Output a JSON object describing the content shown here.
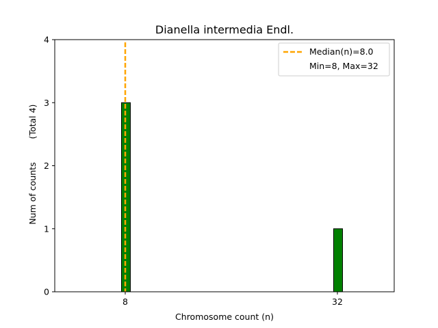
{
  "chart_data": {
    "type": "bar",
    "title": "Dianella intermedia Endl.",
    "xlabel": "Chromosome count (n)",
    "ylabel": "Num of counts",
    "ylabel_note": "(Total 4)",
    "x": [
      8,
      32
    ],
    "values": [
      3,
      1
    ],
    "xticks": [
      8,
      32
    ],
    "yticks": [
      0,
      1,
      2,
      3,
      4
    ],
    "ylim": [
      0,
      4
    ],
    "grid": false,
    "legend_position": "top-right",
    "median_line": {
      "label": "Median(n)=8.0",
      "x": 8.0,
      "style": "dashed"
    },
    "min_max_label": "Min=8, Max=32",
    "colors": {
      "bar_fill": "#008000",
      "bar_edge": "#000000",
      "median": "#FFA500"
    }
  }
}
